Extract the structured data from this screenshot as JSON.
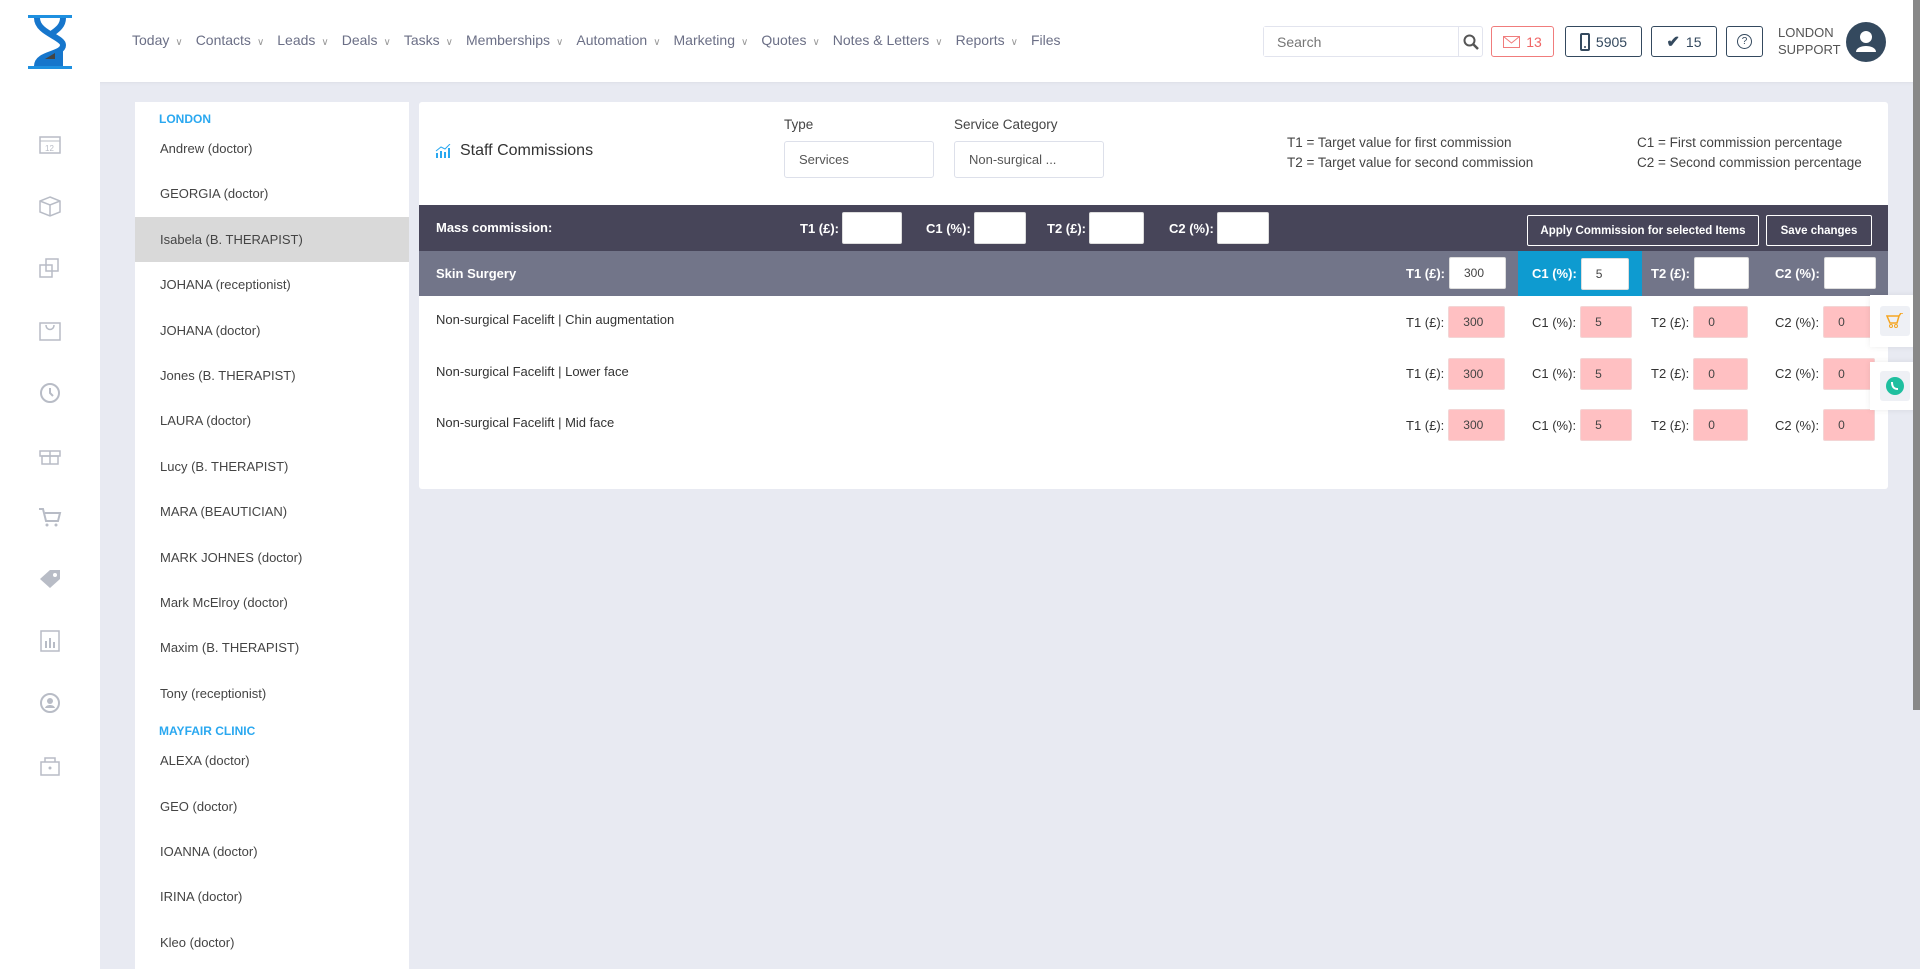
{
  "nav": [
    "Today",
    "Contacts",
    "Leads",
    "Deals",
    "Tasks",
    "Memberships",
    "Automation",
    "Marketing",
    "Quotes",
    "Notes & Letters",
    "Reports",
    "Files"
  ],
  "nav_dropdown": [
    true,
    true,
    true,
    true,
    true,
    true,
    true,
    true,
    true,
    true,
    true,
    false
  ],
  "search": {
    "placeholder": "Search"
  },
  "badges": {
    "mail": "13",
    "phone": "5905",
    "tasks": "15"
  },
  "user": {
    "line1": "LONDON",
    "line2": "SUPPORT"
  },
  "rail_icons": [
    "calendar-icon",
    "box-icon",
    "copy-icon",
    "bag-icon",
    "history-icon",
    "gift-icon",
    "cart-icon",
    "tag-icon",
    "report-icon",
    "user-sync-icon",
    "lock-icon"
  ],
  "staff": {
    "groups": [
      {
        "name": "LONDON",
        "items": [
          "Andrew (doctor)",
          "GEORGIA (doctor)",
          "Isabela (B. THERAPIST)",
          "JOHANA (receptionist)",
          "JOHANA (doctor)",
          "Jones (B. THERAPIST)",
          "LAURA (doctor)",
          "Lucy (B. THERAPIST)",
          "MARA (BEAUTICIAN)",
          "MARK JOHNES (doctor)",
          "Mark McElroy (doctor)",
          "Maxim (B. THERAPIST)",
          "Tony (receptionist)"
        ]
      },
      {
        "name": "MAYFAIR CLINIC",
        "items": [
          "ALEXA (doctor)",
          "GEO (doctor)",
          "IOANNA (doctor)",
          "IRINA (doctor)",
          "Kleo (doctor)"
        ]
      }
    ],
    "selected": "Isabela (B. THERAPIST)"
  },
  "card": {
    "title": "Staff Commissions",
    "type_label": "Type",
    "type_value": "Services",
    "category_label": "Service Category",
    "category_value": "Non-surgical ...",
    "legend": [
      "T1 = Target value for first commission",
      "T2 = Target value for second commission",
      "C1 = First commission percentage",
      "C2 = Second commission percentage"
    ],
    "labels": {
      "t1": "T1 (£):",
      "c1": "C1 (%):",
      "t2": "T2 (£):",
      "c2": "C2 (%):"
    },
    "mass": {
      "label": "Mass commission:",
      "t1": "",
      "c1": "",
      "t2": "",
      "c2": "",
      "apply": "Apply Commission for selected Items",
      "save": "Save changes"
    },
    "category_row": {
      "name": "Skin Surgery",
      "t1": "300",
      "c1": "5",
      "t2": "",
      "c2": ""
    },
    "rows": [
      {
        "name": "Non-surgical Facelift | Chin augmentation",
        "t1": "300",
        "c1": "5",
        "t2": "0",
        "c2": "0"
      },
      {
        "name": "Non-surgical Facelift | Lower face",
        "t1": "300",
        "c1": "5",
        "t2": "0",
        "c2": "0"
      },
      {
        "name": "Non-surgical Facelift | Mid face",
        "t1": "300",
        "c1": "5",
        "t2": "0",
        "c2": "0"
      }
    ]
  },
  "colors": {
    "mass_bar": "#474559",
    "category_bar": "#727589",
    "highlight": "#0e9bd0",
    "pink_input": "#ffc0c2",
    "accent": "#2aa8f0"
  }
}
